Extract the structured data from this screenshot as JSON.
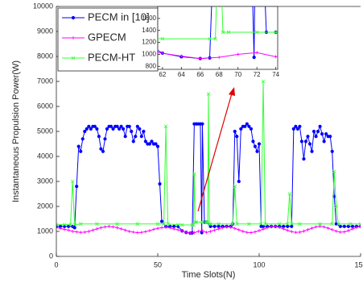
{
  "chart_data": {
    "type": "line",
    "xlabel": "Time Slots(N)",
    "ylabel": "Instantaneous Propulsion Power(W)",
    "xlim": [
      0,
      150
    ],
    "xticks": [
      0,
      50,
      100,
      150
    ],
    "ylim": [
      0,
      10000
    ],
    "yticks": [
      0,
      1000,
      2000,
      3000,
      4000,
      5000,
      6000,
      7000,
      8000,
      9000,
      10000
    ],
    "legend": "upper left",
    "inset": {
      "xlim": [
        61.5,
        74.2
      ],
      "xticks": [
        62,
        64,
        66,
        68,
        70,
        72,
        74
      ],
      "ylim": [
        750,
        1800
      ],
      "yticks": [
        800,
        1000,
        1200,
        1400,
        1600
      ]
    },
    "series": [
      {
        "name": "PECM in [10]",
        "color": "#0000ff",
        "marker": "circle",
        "x": [
          0,
          2,
          4,
          6,
          8,
          9,
          10,
          11,
          12,
          13,
          14,
          15,
          16,
          17,
          18,
          19,
          20,
          21,
          22,
          23,
          24,
          25,
          26,
          27,
          28,
          29,
          30,
          31,
          32,
          33,
          34,
          35,
          36,
          37,
          38,
          39,
          40,
          41,
          42,
          43,
          44,
          45,
          46,
          47,
          48,
          49,
          50,
          51,
          52,
          54,
          56,
          58,
          60,
          62,
          64,
          66,
          67,
          68,
          69,
          70,
          71,
          71.7,
          72,
          73,
          74,
          76,
          78,
          80,
          82,
          84,
          86,
          87,
          88,
          89,
          90,
          91,
          92,
          93,
          94,
          95,
          96,
          97,
          98,
          99,
          100,
          101,
          102,
          104,
          106,
          108,
          110,
          112,
          114,
          116,
          117,
          118,
          119,
          120,
          121,
          122,
          123,
          124,
          125,
          126,
          127,
          128,
          129,
          130,
          131,
          132,
          133,
          134,
          135,
          136,
          137,
          138,
          140,
          142,
          144,
          146,
          148,
          150
        ],
        "values": [
          1200,
          1200,
          1200,
          1200,
          1200,
          1150,
          2800,
          4400,
          4200,
          4700,
          5000,
          5100,
          5200,
          5100,
          5200,
          5200,
          5100,
          4800,
          4300,
          4200,
          4700,
          5100,
          5200,
          5200,
          5100,
          5200,
          5200,
          5100,
          5200,
          5100,
          4800,
          5200,
          5200,
          5000,
          4600,
          4800,
          5200,
          5100,
          4800,
          5000,
          4600,
          4500,
          4500,
          4600,
          4500,
          4500,
          4400,
          2900,
          1400,
          1200,
          1200,
          1200,
          1200,
          1020,
          960,
          930,
          940,
          5300,
          5300,
          5300,
          5300,
          950,
          5300,
          1370,
          1370,
          1200,
          1200,
          1200,
          1200,
          1200,
          1200,
          1300,
          5000,
          4800,
          3000,
          5100,
          5200,
          5200,
          5300,
          5200,
          5100,
          4600,
          4400,
          4200,
          4500,
          1200,
          1200,
          1200,
          1200,
          1200,
          1200,
          1200,
          1200,
          1200,
          5100,
          5200,
          5100,
          5200,
          4600,
          3900,
          4600,
          4800,
          4500,
          4200,
          5000,
          4800,
          5000,
          5200,
          4900,
          4600,
          4900,
          4800,
          4800,
          4200,
          2400,
          1300,
          1200,
          1200,
          1200,
          1200,
          1200,
          1200
        ]
      },
      {
        "name": "GPECM",
        "color": "#ff00ff",
        "marker": "plus",
        "x": [
          0,
          2,
          4,
          6,
          8,
          10,
          12,
          14,
          16,
          18,
          20,
          22,
          24,
          26,
          28,
          30,
          32,
          34,
          36,
          38,
          40,
          42,
          44,
          46,
          48,
          50,
          52,
          54,
          56,
          58,
          60,
          62,
          64,
          66,
          68,
          70,
          72,
          74,
          76,
          78,
          80,
          82,
          84,
          86,
          88,
          90,
          92,
          94,
          96,
          98,
          100,
          102,
          104,
          106,
          108,
          110,
          112,
          114,
          116,
          118,
          120,
          122,
          124,
          126,
          128,
          130,
          132,
          134,
          136,
          138,
          140,
          142,
          144,
          146,
          148,
          150
        ],
        "values": [
          1150,
          1120,
          1080,
          1050,
          1000,
          980,
          960,
          970,
          1000,
          1050,
          1100,
          1150,
          1180,
          1200,
          1180,
          1150,
          1100,
          1050,
          1000,
          970,
          950,
          960,
          990,
          1030,
          1080,
          1120,
          1150,
          1160,
          1140,
          1100,
          1060,
          1020,
          970,
          930,
          950,
          1000,
          1030,
          960,
          1000,
          1050,
          1100,
          1150,
          1180,
          1170,
          1120,
          1060,
          1000,
          960,
          950,
          980,
          1030,
          1090,
          1150,
          1190,
          1200,
          1160,
          1100,
          1040,
          990,
          960,
          970,
          1010,
          1070,
          1130,
          1180,
          1200,
          1180,
          1130,
          1070,
          1010,
          970,
          980,
          1030,
          1100,
          1160,
          1200
        ]
      },
      {
        "name": "PECM-HT",
        "color": "#33ff33",
        "marker": "x",
        "x": [
          0,
          4,
          7,
          8,
          9,
          12,
          20,
          30,
          40,
          50,
          53,
          54,
          55,
          60,
          62,
          67,
          67.6,
          68,
          68.4,
          69,
          72,
          74,
          74.6,
          75,
          75.4,
          76,
          80,
          87,
          88,
          89,
          95,
          101,
          102,
          103,
          110,
          114,
          115,
          116,
          120,
          130,
          136,
          137,
          138,
          139,
          145,
          150
        ],
        "values": [
          1270,
          1270,
          1270,
          3000,
          1270,
          1300,
          1300,
          1300,
          1300,
          1300,
          1300,
          5200,
          1300,
          1270,
          1260,
          1260,
          1260,
          3300,
          1370,
          1370,
          1370,
          1370,
          1370,
          6500,
          1300,
          1300,
          1300,
          1300,
          2800,
          1300,
          1300,
          1300,
          7000,
          1300,
          1300,
          1300,
          2500,
          1300,
          1300,
          1300,
          1300,
          3400,
          2000,
          1300,
          1300,
          1300
        ]
      }
    ]
  }
}
